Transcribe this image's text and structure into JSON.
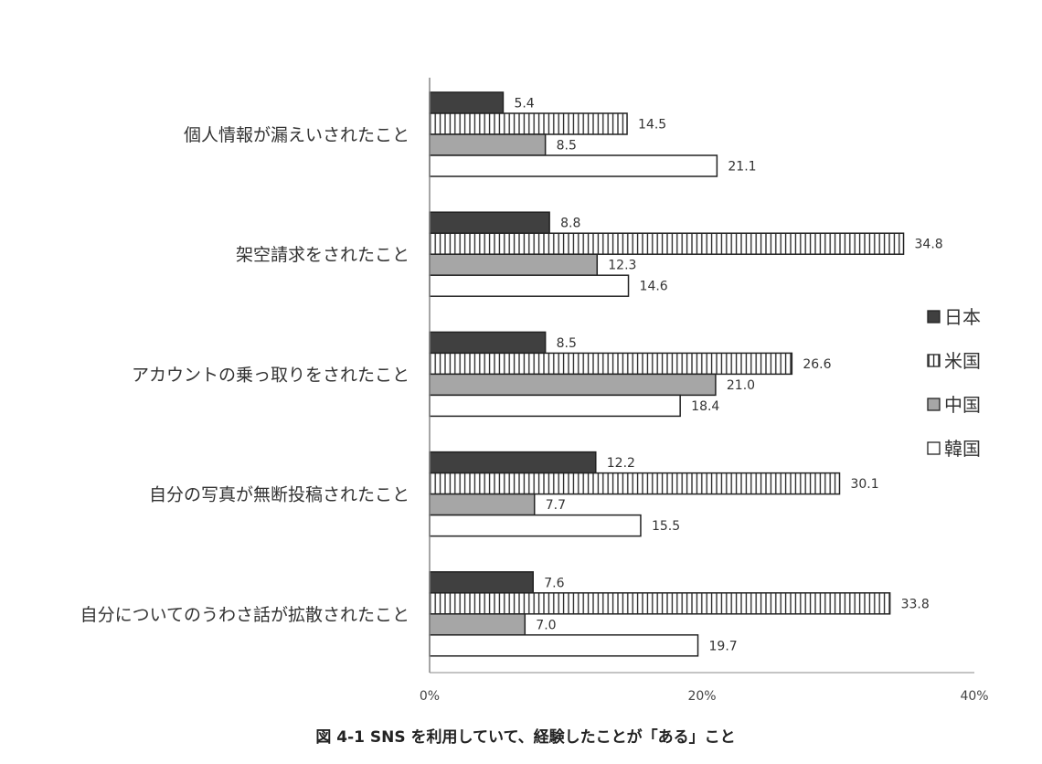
{
  "chart_data": {
    "type": "bar",
    "orientation": "horizontal",
    "title": "図 4-1  SNS を利用していて、経験したことが「ある」こと",
    "categories": [
      "個人情報が漏えいされたこと",
      "架空請求をされたこと",
      "アカウントの乗っ取りをされたこと",
      "自分の写真が無断投稿されたこと",
      "自分についてのうわさ話が拡散されたこと"
    ],
    "series": [
      {
        "name": "日本",
        "color": "#404040",
        "pattern": "solid",
        "values": [
          5.4,
          8.8,
          8.5,
          12.2,
          7.6
        ]
      },
      {
        "name": "米国",
        "color": "#ffffff",
        "pattern": "vertical-stripes",
        "values": [
          14.5,
          34.8,
          26.6,
          30.1,
          33.8
        ]
      },
      {
        "name": "中国",
        "color": "#a6a6a6",
        "pattern": "solid",
        "values": [
          8.5,
          12.3,
          21.0,
          7.7,
          7.0
        ]
      },
      {
        "name": "韓国",
        "color": "#ffffff",
        "pattern": "solid",
        "values": [
          21.1,
          14.6,
          18.4,
          15.5,
          19.7
        ]
      }
    ],
    "xlim": [
      0,
      40
    ],
    "xticks": [
      "0%",
      "20%",
      "40%"
    ],
    "xtick_values": [
      0,
      20,
      40
    ],
    "legend_position": "right",
    "grid": false
  }
}
